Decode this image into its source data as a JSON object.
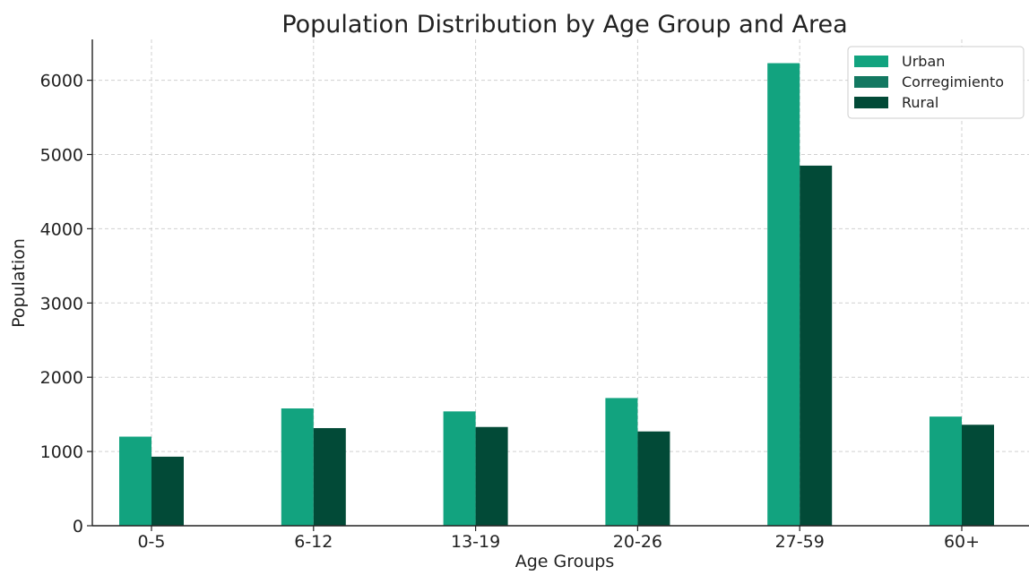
{
  "chart_data": {
    "type": "bar",
    "title": "Population Distribution by Age Group and Area",
    "xlabel": "Age Groups",
    "ylabel": "Population",
    "categories": [
      "0-5",
      "6-12",
      "13-19",
      "20-26",
      "27-59",
      "60+"
    ],
    "series": [
      {
        "name": "Urban",
        "color": "#12a37f",
        "values": [
          1200,
          1580,
          1540,
          1720,
          6230,
          1470
        ]
      },
      {
        "name": "Corregimiento",
        "color": "#137861",
        "values": [
          0,
          0,
          0,
          0,
          0,
          0
        ]
      },
      {
        "name": "Rural",
        "color": "#024a37",
        "values": [
          930,
          1315,
          1330,
          1270,
          4850,
          1360
        ]
      }
    ],
    "ylim": [
      0,
      6550
    ],
    "yticks": [
      0,
      1000,
      2000,
      3000,
      4000,
      5000,
      6000
    ],
    "grid": true,
    "legend_position": "top-right"
  }
}
